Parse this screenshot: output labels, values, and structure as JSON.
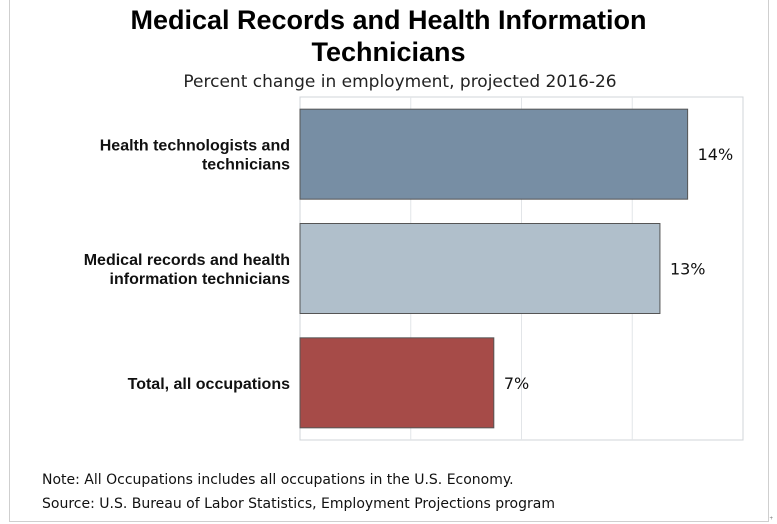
{
  "chart_data": {
    "type": "bar",
    "orientation": "horizontal",
    "title": "Medical Records and Health Information Technicians",
    "subtitle": "Percent change in employment, projected 2016-26",
    "categories": [
      [
        "Health technologists and",
        "technicians"
      ],
      [
        "Medical records and health",
        "information technicians"
      ],
      [
        "Total, all occupations"
      ]
    ],
    "values": [
      14,
      13,
      7
    ],
    "value_labels": [
      "14%",
      "13%",
      "7%"
    ],
    "bar_colors": [
      "#778ea4",
      "#b0bfcb",
      "#a64b48"
    ],
    "xlim": [
      0,
      16
    ],
    "grid": true,
    "xlabel": "",
    "ylabel": ""
  },
  "notes": {
    "note": "Note: All Occupations includes all occupations in the U.S. Economy.",
    "source": "Source: U.S. Bureau of Labor Statistics, Employment Projections program"
  },
  "corner_mark": "+"
}
